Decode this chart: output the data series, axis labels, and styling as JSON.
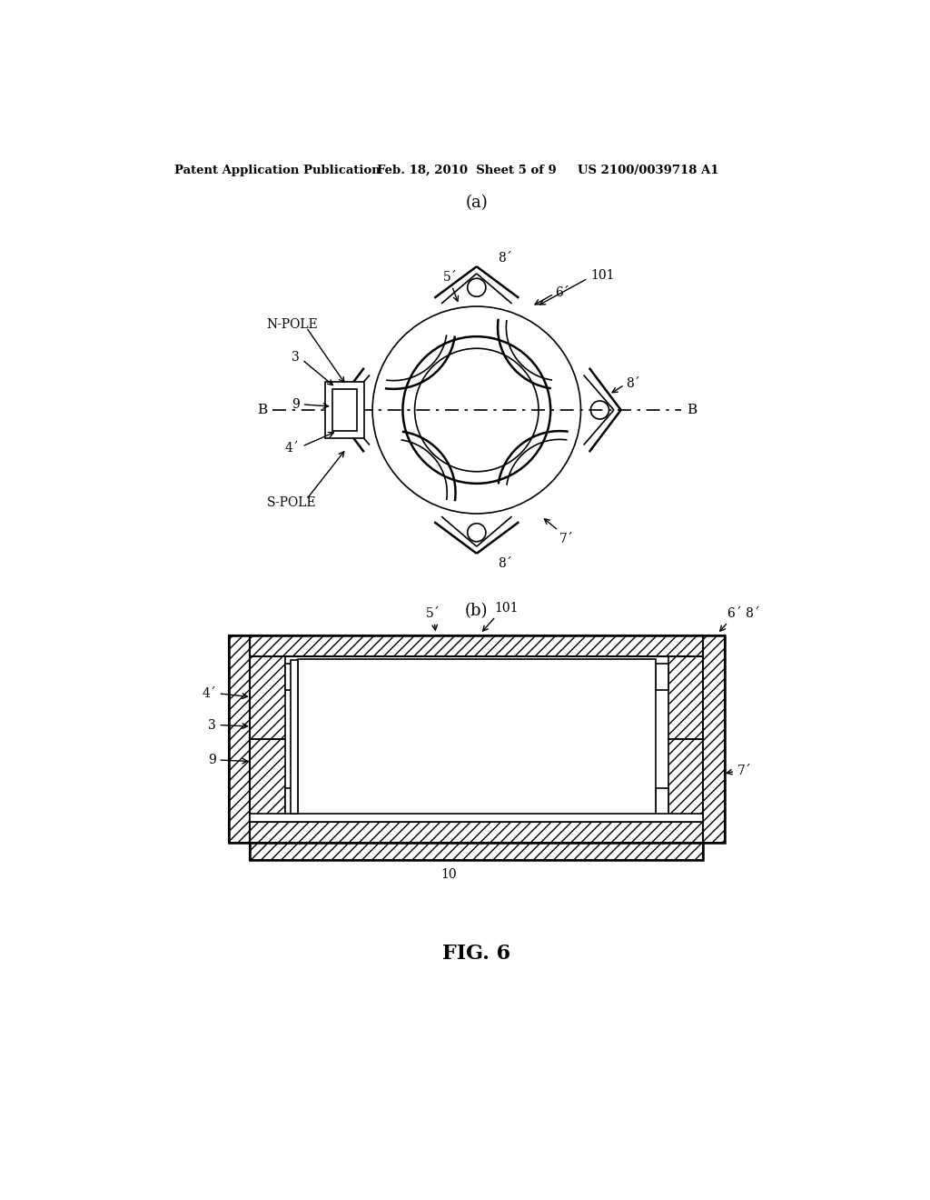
{
  "bg_color": "#ffffff",
  "line_color": "#000000",
  "header_left": "Patent Application Publication",
  "header_mid": "Feb. 18, 2010  Sheet 5 of 9",
  "header_right": "US 2100/0039718 A1",
  "fig_label": "FIG. 6",
  "label_a": "(a)",
  "label_b": "(b)"
}
